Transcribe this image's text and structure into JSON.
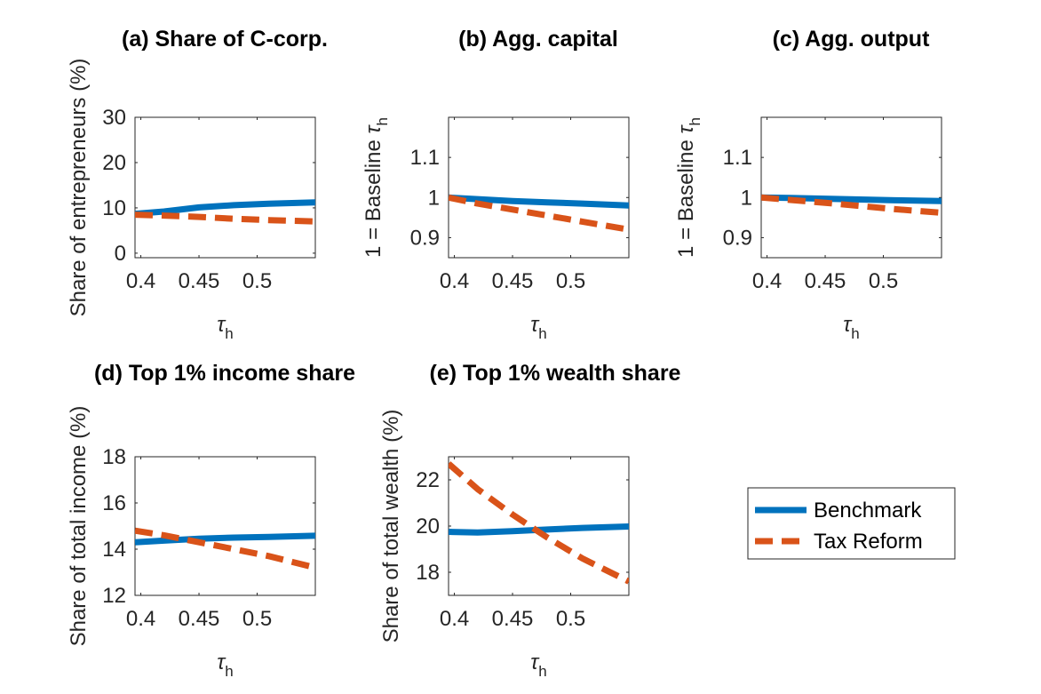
{
  "colors": {
    "benchmark": "#0072BD",
    "tax_reform": "#D95319",
    "axis": "#262626"
  },
  "legend": {
    "placement": "right",
    "items": [
      "Benchmark",
      "Tax Reform"
    ]
  },
  "chart_data": [
    {
      "type": "line",
      "title": "(a) Share of C-corp.",
      "xlabel": "τh",
      "ylabel": "Share of entrepreneurs (%)",
      "xlim": [
        0.395,
        0.55
      ],
      "ylim": [
        -1,
        30
      ],
      "xticks": [
        0.4,
        0.45,
        0.5
      ],
      "xtick_labels": [
        "0.4",
        "0.45",
        "0.5"
      ],
      "yticks": [
        0,
        10,
        20,
        30
      ],
      "ytick_labels": [
        "0",
        "10",
        "20",
        "30"
      ],
      "series": [
        {
          "name": "Benchmark",
          "style": "solid",
          "x": [
            0.395,
            0.42,
            0.45,
            0.48,
            0.51,
            0.55
          ],
          "values": [
            8.7,
            9.2,
            10.1,
            10.6,
            10.9,
            11.2
          ]
        },
        {
          "name": "Tax Reform",
          "style": "dashed",
          "x": [
            0.395,
            0.42,
            0.45,
            0.48,
            0.51,
            0.55
          ],
          "values": [
            8.5,
            8.3,
            8.0,
            7.6,
            7.3,
            7.0
          ]
        }
      ]
    },
    {
      "type": "line",
      "title": "(b) Agg. capital",
      "xlabel": "τh",
      "ylabel": "1 = Baseline τh",
      "xlim": [
        0.395,
        0.55
      ],
      "ylim": [
        0.85,
        1.2
      ],
      "xticks": [
        0.4,
        0.45,
        0.5
      ],
      "xtick_labels": [
        "0.4",
        "0.45",
        "0.5"
      ],
      "yticks": [
        0.9,
        1.0,
        1.1
      ],
      "ytick_labels": [
        "0.9",
        "1",
        "1.1"
      ],
      "series": [
        {
          "name": "Benchmark",
          "style": "solid",
          "x": [
            0.395,
            0.42,
            0.45,
            0.48,
            0.51,
            0.55
          ],
          "values": [
            1.0,
            0.996,
            0.991,
            0.988,
            0.985,
            0.98
          ]
        },
        {
          "name": "Tax Reform",
          "style": "dashed",
          "x": [
            0.395,
            0.42,
            0.45,
            0.48,
            0.51,
            0.55
          ],
          "values": [
            1.0,
            0.985,
            0.97,
            0.955,
            0.94,
            0.92
          ]
        }
      ]
    },
    {
      "type": "line",
      "title": "(c) Agg. output",
      "xlabel": "τh",
      "ylabel": "1 = Baseline τh",
      "xlim": [
        0.395,
        0.55
      ],
      "ylim": [
        0.85,
        1.2
      ],
      "xticks": [
        0.4,
        0.45,
        0.5
      ],
      "xtick_labels": [
        "0.4",
        "0.45",
        "0.5"
      ],
      "yticks": [
        0.9,
        1.0,
        1.1
      ],
      "ytick_labels": [
        "0.9",
        "1",
        "1.1"
      ],
      "series": [
        {
          "name": "Benchmark",
          "style": "solid",
          "x": [
            0.395,
            0.42,
            0.45,
            0.48,
            0.51,
            0.55
          ],
          "values": [
            1.0,
            0.999,
            0.997,
            0.995,
            0.993,
            0.991
          ]
        },
        {
          "name": "Tax Reform",
          "style": "dashed",
          "x": [
            0.395,
            0.42,
            0.45,
            0.48,
            0.51,
            0.55
          ],
          "values": [
            1.0,
            0.994,
            0.987,
            0.979,
            0.971,
            0.962
          ]
        }
      ]
    },
    {
      "type": "line",
      "title": "(d) Top 1% income share",
      "xlabel": "τh",
      "ylabel": "Share of total income (%)",
      "xlim": [
        0.395,
        0.55
      ],
      "ylim": [
        12,
        18
      ],
      "xticks": [
        0.4,
        0.45,
        0.5
      ],
      "xtick_labels": [
        "0.4",
        "0.45",
        "0.5"
      ],
      "yticks": [
        12,
        14,
        16,
        18
      ],
      "ytick_labels": [
        "12",
        "14",
        "16",
        "18"
      ],
      "series": [
        {
          "name": "Benchmark",
          "style": "solid",
          "x": [
            0.395,
            0.42,
            0.45,
            0.48,
            0.51,
            0.55
          ],
          "values": [
            14.3,
            14.37,
            14.45,
            14.5,
            14.53,
            14.58
          ]
        },
        {
          "name": "Tax Reform",
          "style": "dashed",
          "x": [
            0.395,
            0.42,
            0.45,
            0.48,
            0.51,
            0.55
          ],
          "values": [
            14.8,
            14.6,
            14.3,
            14.0,
            13.7,
            13.2
          ]
        }
      ]
    },
    {
      "type": "line",
      "title": "(e) Top 1% wealth share",
      "xlabel": "τh",
      "ylabel": "Share of total wealth (%)",
      "xlim": [
        0.395,
        0.55
      ],
      "ylim": [
        17,
        23
      ],
      "xticks": [
        0.4,
        0.45,
        0.5
      ],
      "xtick_labels": [
        "0.4",
        "0.45",
        "0.5"
      ],
      "yticks": [
        18,
        20,
        22
      ],
      "ytick_labels": [
        "18",
        "20",
        "22"
      ],
      "series": [
        {
          "name": "Benchmark",
          "style": "solid",
          "x": [
            0.395,
            0.42,
            0.45,
            0.48,
            0.51,
            0.55
          ],
          "values": [
            19.75,
            19.72,
            19.78,
            19.85,
            19.92,
            19.98
          ]
        },
        {
          "name": "Tax Reform",
          "style": "dashed",
          "x": [
            0.395,
            0.42,
            0.45,
            0.48,
            0.51,
            0.55
          ],
          "values": [
            22.7,
            21.6,
            20.5,
            19.5,
            18.6,
            17.6
          ]
        }
      ]
    }
  ]
}
